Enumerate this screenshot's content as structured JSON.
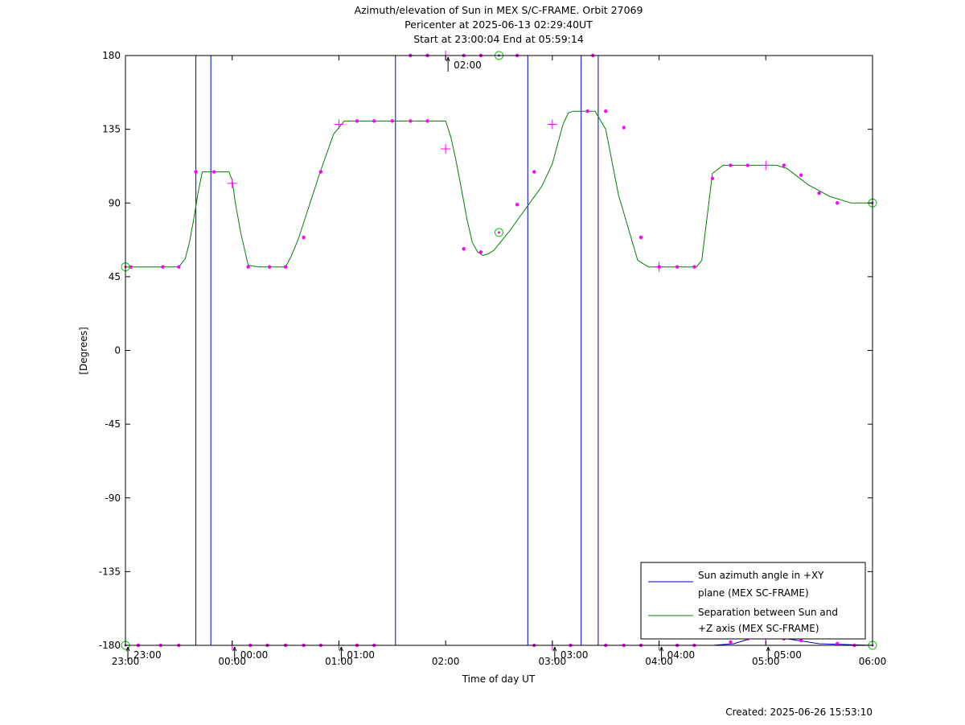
{
  "chart_data": {
    "type": "line",
    "title": "Azimuth/elevation of Sun in MEX S/C-FRAME.  Orbit 27069",
    "subtitle_1": "Pericenter at 2025-06-13 02:29:40UT",
    "subtitle_2": "Start at 23:00:04 End at 05:59:14",
    "xlabel": "Time of day UT",
    "ylabel": "[Degrees]",
    "footer": "Created: 2025-06-26 15:53:10",
    "x_unit": "hours since 23:00 UT",
    "xlim": [
      0,
      7
    ],
    "ylim": [
      -180,
      180
    ],
    "x_ticks": [
      {
        "x": 0,
        "label": "23:00"
      },
      {
        "x": 1,
        "label": "00:00"
      },
      {
        "x": 2,
        "label": "01:00"
      },
      {
        "x": 3,
        "label": "02:00"
      },
      {
        "x": 4,
        "label": "03:00"
      },
      {
        "x": 5,
        "label": "04:00"
      },
      {
        "x": 6,
        "label": "05:00"
      },
      {
        "x": 7,
        "label": "06:00"
      }
    ],
    "y_ticks": [
      {
        "y": 180,
        "label": "180"
      },
      {
        "y": 135,
        "label": "135"
      },
      {
        "y": 90,
        "label": "90"
      },
      {
        "y": 45,
        "label": "45"
      },
      {
        "y": 0,
        "label": "0"
      },
      {
        "y": -45,
        "label": "-45"
      },
      {
        "y": -90,
        "label": "-90"
      },
      {
        "y": -135,
        "label": "-135"
      },
      {
        "y": -180,
        "label": "-180"
      }
    ],
    "time_markers": [
      {
        "x": 0.0,
        "y": -180,
        "label": "23:00"
      },
      {
        "x": 1.0,
        "y": -180,
        "label": "00:00"
      },
      {
        "x": 2.0,
        "y": -180,
        "label": "01:00"
      },
      {
        "x": 3.0,
        "y": 180,
        "label": "02:00"
      },
      {
        "x": 4.0,
        "y": -180,
        "label": "03:00"
      },
      {
        "x": 5.0,
        "y": -180,
        "label": "04:00"
      },
      {
        "x": 6.0,
        "y": -180,
        "label": "05:00"
      }
    ],
    "legend": {
      "placement": "bottom-right",
      "entries": [
        {
          "line1": "Sun azimuth angle in +XY",
          "line2": "plane (MEX SC-FRAME)",
          "color": "#0000cc"
        },
        {
          "line1": "Separation between Sun and",
          "line2": "+Z axis (MEX SC-FRAME)",
          "color": "#008000"
        }
      ]
    },
    "marker_color": "#ff00ff",
    "circle_marker_color": "#00cc00",
    "series": [
      {
        "name": "Sun azimuth angle in +XY plane (MEX SC-FRAME)",
        "color": "#0000cc",
        "x": [
          0,
          0.66,
          0.66,
          0.8,
          0.8,
          0.81,
          0.81,
          2.53,
          2.53,
          3.77,
          3.77,
          4.27,
          4.27,
          4.43,
          4.43,
          5.5,
          5.7,
          5.85,
          6.0,
          6.2,
          6.5,
          7.0
        ],
        "y": [
          -180,
          -180,
          180,
          180,
          -180,
          -180,
          -180,
          -180,
          180,
          180,
          -180,
          -180,
          180,
          180,
          -180,
          -180,
          -179,
          -176,
          -175,
          -176,
          -179,
          -180
        ]
      },
      {
        "name": "Separation between Sun and +Z axis (MEX SC-FRAME)",
        "color": "#008000",
        "x": [
          0,
          0.5,
          0.56,
          0.6,
          0.64,
          0.68,
          0.72,
          0.97,
          1.0,
          1.03,
          1.08,
          1.15,
          1.25,
          1.5,
          1.55,
          1.62,
          1.7,
          1.82,
          1.95,
          2.05,
          2.1,
          3.0,
          3.05,
          3.1,
          3.15,
          3.2,
          3.25,
          3.3,
          3.35,
          3.4,
          3.45,
          3.5,
          3.6,
          3.7,
          3.8,
          3.9,
          4.0,
          4.05,
          4.1,
          4.15,
          4.2,
          4.25,
          4.3,
          4.35,
          4.4,
          4.5,
          4.62,
          4.8,
          4.9,
          5.0,
          5.1,
          5.2,
          5.35,
          5.4,
          5.5,
          5.6,
          6.0,
          6.1,
          6.2,
          6.4,
          6.6,
          6.8,
          6.9,
          7.0
        ],
        "y": [
          51,
          51,
          56,
          66,
          80,
          96,
          109,
          109,
          104,
          90,
          72,
          52,
          51,
          51,
          57,
          68,
          84,
          108,
          132,
          140,
          140,
          140,
          130,
          115,
          98,
          80,
          66,
          60,
          58,
          59,
          61,
          65,
          73,
          82,
          91,
          100,
          114,
          126,
          138,
          145,
          146,
          146,
          146,
          146,
          146,
          135,
          95,
          55,
          51,
          51,
          51,
          51,
          51,
          55,
          108,
          113,
          113,
          113,
          111,
          101,
          94,
          90,
          90,
          90
        ]
      }
    ],
    "markers": {
      "dots": [
        [
          0.05,
          51
        ],
        [
          0.35,
          51
        ],
        [
          0.5,
          51
        ],
        [
          0.66,
          109
        ],
        [
          0.83,
          109
        ],
        [
          1.15,
          51
        ],
        [
          1.35,
          51
        ],
        [
          1.5,
          51
        ],
        [
          1.67,
          69
        ],
        [
          1.83,
          109
        ],
        [
          2.17,
          140
        ],
        [
          2.33,
          140
        ],
        [
          2.5,
          140
        ],
        [
          2.67,
          140
        ],
        [
          2.83,
          140
        ],
        [
          2.67,
          180
        ],
        [
          2.83,
          180
        ],
        [
          3.17,
          180
        ],
        [
          3.33,
          180
        ],
        [
          3.67,
          180
        ],
        [
          4.38,
          180
        ],
        [
          3.17,
          62
        ],
        [
          3.33,
          60
        ],
        [
          3.67,
          89
        ],
        [
          3.83,
          109
        ],
        [
          4.33,
          146
        ],
        [
          4.5,
          146
        ],
        [
          4.67,
          136
        ],
        [
          4.83,
          69
        ],
        [
          5.0,
          51
        ],
        [
          5.17,
          51
        ],
        [
          5.33,
          51
        ],
        [
          5.5,
          105
        ],
        [
          5.67,
          113
        ],
        [
          5.83,
          113
        ],
        [
          6.17,
          113
        ],
        [
          6.33,
          107
        ],
        [
          6.5,
          96
        ],
        [
          6.67,
          90
        ],
        [
          0.12,
          -180
        ],
        [
          0.33,
          -180
        ],
        [
          0.5,
          -180
        ],
        [
          1.17,
          -180
        ],
        [
          1.33,
          -180
        ],
        [
          1.5,
          -180
        ],
        [
          1.67,
          -180
        ],
        [
          1.83,
          -180
        ],
        [
          2.17,
          -180
        ],
        [
          2.33,
          -180
        ],
        [
          3.83,
          -180
        ],
        [
          4.17,
          -180
        ],
        [
          4.5,
          -180
        ],
        [
          4.67,
          -180
        ],
        [
          4.83,
          -180
        ],
        [
          5.17,
          -180
        ],
        [
          5.33,
          -180
        ],
        [
          5.67,
          -178
        ],
        [
          5.83,
          -176
        ],
        [
          6.17,
          -176
        ],
        [
          6.33,
          -177
        ],
        [
          6.67,
          -179
        ],
        [
          6.83,
          -180
        ]
      ],
      "crosses": [
        [
          1.0,
          102
        ],
        [
          2.0,
          138
        ],
        [
          3.0,
          123
        ],
        [
          4.0,
          138
        ],
        [
          3.0,
          180
        ],
        [
          5.0,
          51
        ],
        [
          6.0,
          113
        ],
        [
          1.0,
          -180
        ],
        [
          2.0,
          -180
        ],
        [
          4.0,
          -180
        ],
        [
          5.0,
          -180
        ],
        [
          6.0,
          -176
        ]
      ],
      "circles": [
        [
          0.0,
          51
        ],
        [
          3.5,
          180
        ],
        [
          3.5,
          72
        ],
        [
          7.0,
          90
        ],
        [
          0.0,
          -180
        ],
        [
          7.0,
          -180
        ]
      ]
    }
  }
}
